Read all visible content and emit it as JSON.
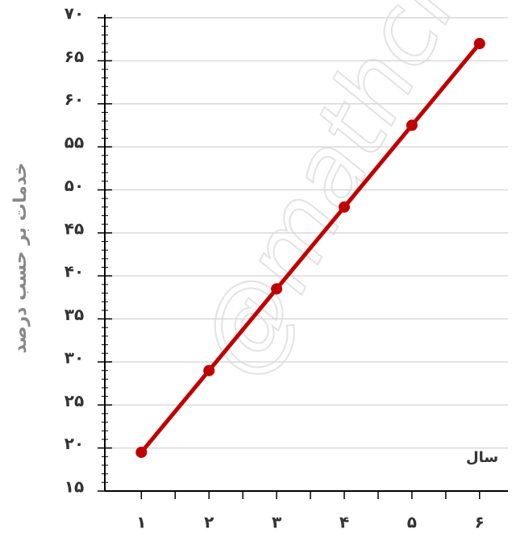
{
  "chart_data": {
    "type": "line",
    "y_label": "خدمات بر حسب درصد",
    "x_label": "سال",
    "watermark": "@mathcla",
    "x": [
      1,
      2,
      3,
      4,
      5,
      6
    ],
    "series": [
      {
        "color": "#c00000",
        "values": [
          19.5,
          29,
          38.5,
          48,
          57.5,
          67
        ]
      }
    ],
    "xlim": [
      0.46,
      6.42
    ],
    "xticks": [
      {
        "value": 1,
        "label": "۱"
      },
      {
        "value": 2,
        "label": "۲"
      },
      {
        "value": 3,
        "label": "۳"
      },
      {
        "value": 4,
        "label": "۴"
      },
      {
        "value": 5,
        "label": "۵"
      },
      {
        "value": 6,
        "label": "۶"
      }
    ],
    "ylim": [
      15,
      70
    ],
    "yticks": [
      {
        "value": 15,
        "label": "۱۵"
      },
      {
        "value": 20,
        "label": "۲۰"
      },
      {
        "value": 25,
        "label": "۲۵"
      },
      {
        "value": 30,
        "label": "۳۰"
      },
      {
        "value": 35,
        "label": "۳۵"
      },
      {
        "value": 40,
        "label": "۴۰"
      },
      {
        "value": 45,
        "label": "۴۵"
      },
      {
        "value": 50,
        "label": "۵۰"
      },
      {
        "value": 55,
        "label": "۵۵"
      },
      {
        "value": 60,
        "label": "۶۰"
      },
      {
        "value": 65,
        "label": "۶۵"
      },
      {
        "value": 70,
        "label": "۷۰"
      }
    ],
    "grid": true
  }
}
